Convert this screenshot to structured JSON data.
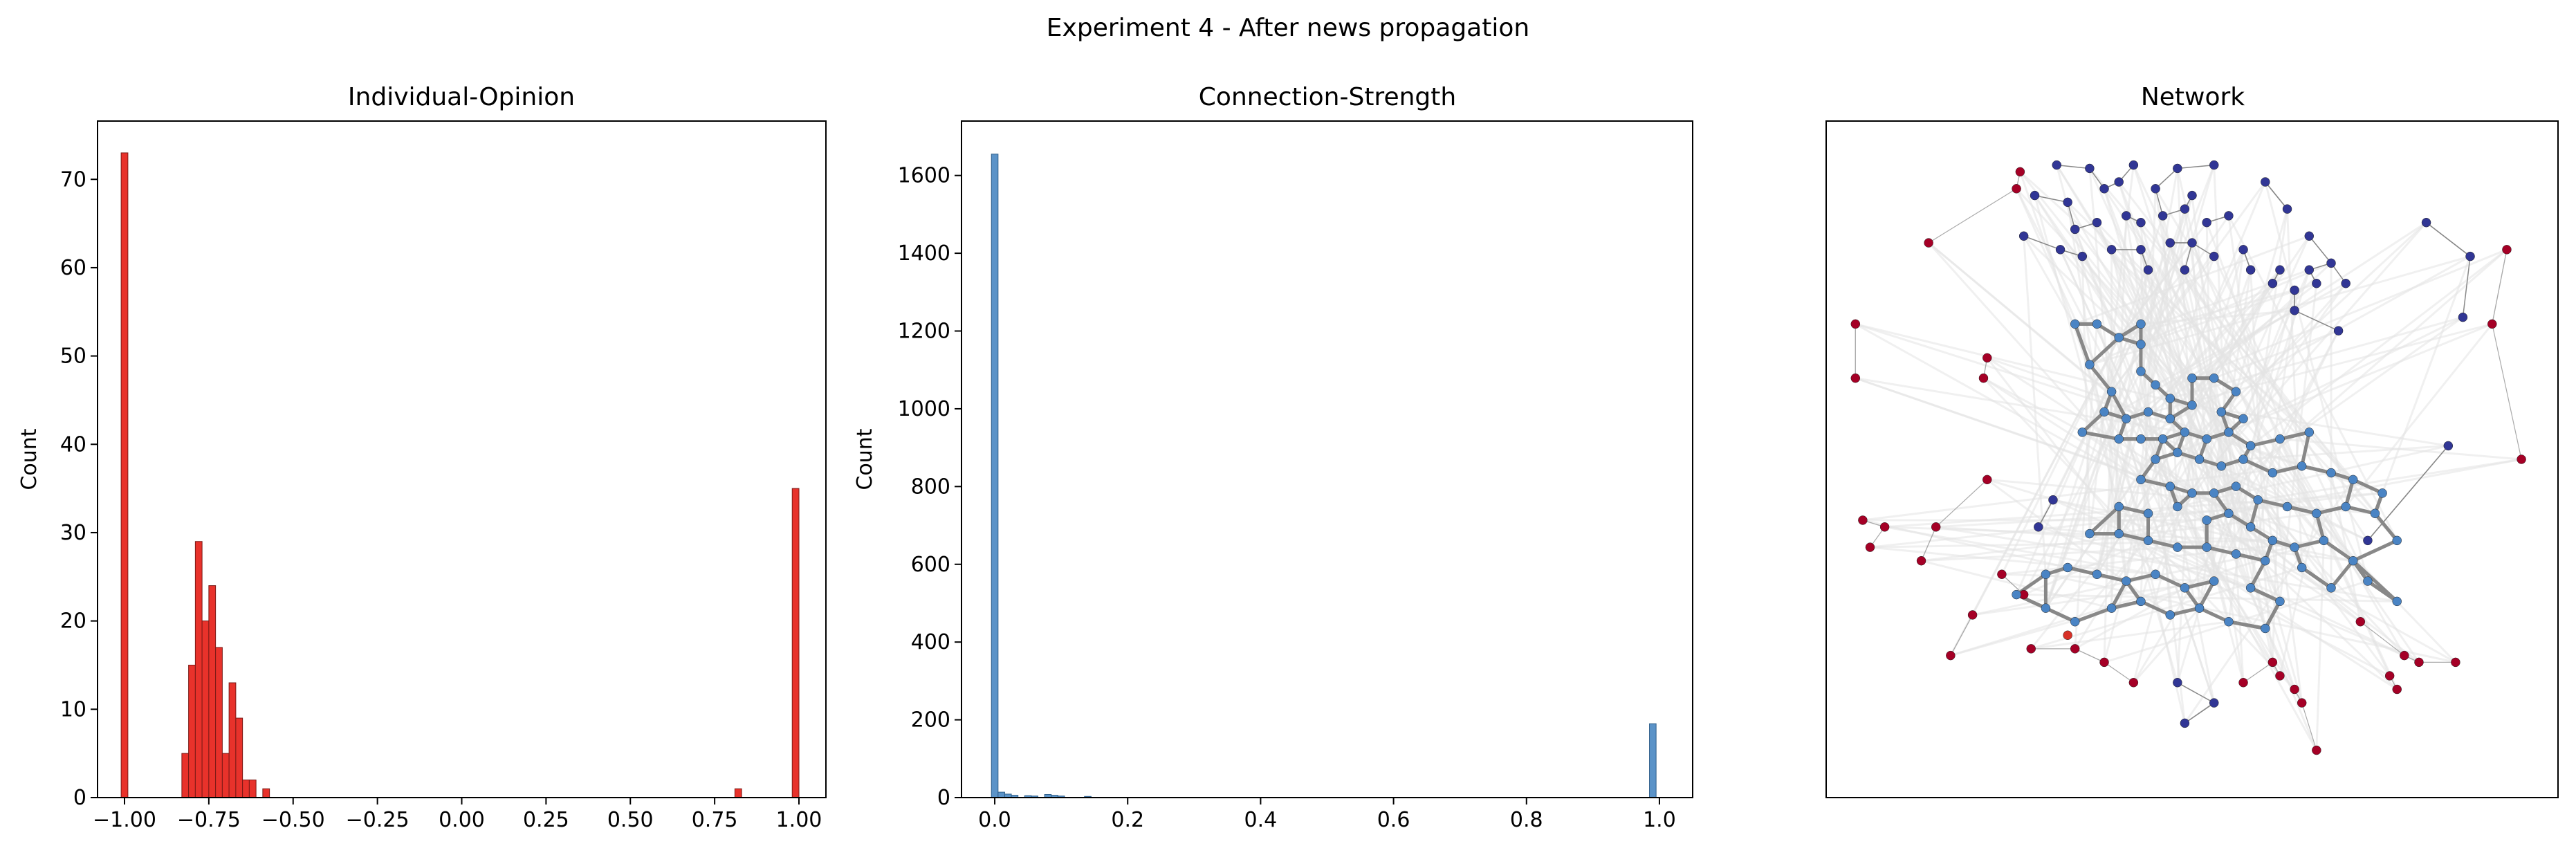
{
  "figure": {
    "suptitle": "Experiment 4 - After news propagation"
  },
  "chart_data": [
    {
      "type": "bar",
      "kind": "histogram",
      "title": "Individual-Opinion",
      "xlabel": "",
      "ylabel": "Count",
      "xlim": [
        -1.08,
        1.08
      ],
      "ylim": [
        0,
        76.6
      ],
      "xticks": [
        -1.0,
        -0.75,
        -0.5,
        -0.25,
        0.0,
        0.25,
        0.5,
        0.75,
        1.0
      ],
      "xtick_labels": [
        "−1.00",
        "−0.75",
        "−0.50",
        "−0.25",
        "0.00",
        "0.25",
        "0.50",
        "0.75",
        "1.00"
      ],
      "yticks": [
        0,
        10,
        20,
        30,
        40,
        50,
        60,
        70
      ],
      "yticks_labels": [
        "0",
        "10",
        "20",
        "30",
        "40",
        "50",
        "60",
        "70"
      ],
      "color": "#e8322b",
      "edge_color": "#7a1a16",
      "bin_width": 0.02,
      "bins": [
        {
          "x": -1.0,
          "count": 73
        },
        {
          "x": -0.82,
          "count": 5
        },
        {
          "x": -0.8,
          "count": 15
        },
        {
          "x": -0.78,
          "count": 29
        },
        {
          "x": -0.76,
          "count": 20
        },
        {
          "x": -0.74,
          "count": 24
        },
        {
          "x": -0.72,
          "count": 17
        },
        {
          "x": -0.7,
          "count": 5
        },
        {
          "x": -0.68,
          "count": 13
        },
        {
          "x": -0.66,
          "count": 9
        },
        {
          "x": -0.64,
          "count": 2
        },
        {
          "x": -0.62,
          "count": 2
        },
        {
          "x": -0.58,
          "count": 1
        },
        {
          "x": 0.82,
          "count": 1
        },
        {
          "x": 0.99,
          "count": 35
        }
      ]
    },
    {
      "type": "bar",
      "kind": "histogram",
      "title": "Connection-Strength",
      "xlabel": "",
      "ylabel": "Count",
      "xlim": [
        -0.05,
        1.05
      ],
      "ylim": [
        0,
        1740
      ],
      "xticks": [
        0.0,
        0.2,
        0.4,
        0.6,
        0.8,
        1.0
      ],
      "xtick_labels": [
        "0.0",
        "0.2",
        "0.4",
        "0.6",
        "0.8",
        "1.0"
      ],
      "yticks": [
        0,
        200,
        400,
        600,
        800,
        1000,
        1200,
        1400,
        1600
      ],
      "yticks_labels": [
        "0",
        "200",
        "400",
        "600",
        "800",
        "1000",
        "1200",
        "1400",
        "1600"
      ],
      "color": "#5b93c8",
      "edge_color": "#2f5f8a",
      "bin_width": 0.01,
      "bins": [
        {
          "x": 0.0,
          "count": 1655
        },
        {
          "x": 0.01,
          "count": 14
        },
        {
          "x": 0.02,
          "count": 9
        },
        {
          "x": 0.03,
          "count": 6
        },
        {
          "x": 0.05,
          "count": 5
        },
        {
          "x": 0.06,
          "count": 4
        },
        {
          "x": 0.08,
          "count": 8
        },
        {
          "x": 0.09,
          "count": 6
        },
        {
          "x": 0.1,
          "count": 4
        },
        {
          "x": 0.14,
          "count": 3
        },
        {
          "x": 0.99,
          "count": 190
        }
      ]
    },
    {
      "type": "scatter",
      "kind": "network",
      "title": "Network",
      "colors": {
        "red": "#a50026",
        "navy": "#313695",
        "blue": "#4a84c4",
        "orange": "#d73027",
        "edge": "#888888",
        "light_edge": "#e4e4e4"
      },
      "nodes": {
        "navy": [
          [
            0.315,
            0.065
          ],
          [
            0.36,
            0.07
          ],
          [
            0.42,
            0.065
          ],
          [
            0.48,
            0.07
          ],
          [
            0.53,
            0.065
          ],
          [
            0.285,
            0.11
          ],
          [
            0.33,
            0.12
          ],
          [
            0.38,
            0.1
          ],
          [
            0.4,
            0.09
          ],
          [
            0.45,
            0.1
          ],
          [
            0.5,
            0.11
          ],
          [
            0.6,
            0.09
          ],
          [
            0.34,
            0.16
          ],
          [
            0.37,
            0.15
          ],
          [
            0.41,
            0.14
          ],
          [
            0.43,
            0.15
          ],
          [
            0.46,
            0.14
          ],
          [
            0.49,
            0.13
          ],
          [
            0.52,
            0.15
          ],
          [
            0.55,
            0.14
          ],
          [
            0.63,
            0.13
          ],
          [
            0.27,
            0.17
          ],
          [
            0.32,
            0.19
          ],
          [
            0.35,
            0.2
          ],
          [
            0.39,
            0.19
          ],
          [
            0.43,
            0.19
          ],
          [
            0.47,
            0.18
          ],
          [
            0.5,
            0.18
          ],
          [
            0.53,
            0.2
          ],
          [
            0.57,
            0.19
          ],
          [
            0.66,
            0.17
          ],
          [
            0.44,
            0.22
          ],
          [
            0.49,
            0.22
          ],
          [
            0.58,
            0.22
          ],
          [
            0.62,
            0.22
          ],
          [
            0.66,
            0.22
          ],
          [
            0.69,
            0.21
          ],
          [
            0.82,
            0.15
          ],
          [
            0.88,
            0.2
          ],
          [
            0.61,
            0.24
          ],
          [
            0.64,
            0.25
          ],
          [
            0.67,
            0.24
          ],
          [
            0.71,
            0.24
          ],
          [
            0.64,
            0.28
          ],
          [
            0.7,
            0.31
          ],
          [
            0.87,
            0.29
          ],
          [
            0.31,
            0.56
          ],
          [
            0.29,
            0.6
          ],
          [
            0.85,
            0.48
          ],
          [
            0.74,
            0.62
          ],
          [
            0.48,
            0.83
          ],
          [
            0.53,
            0.86
          ],
          [
            0.49,
            0.89
          ]
        ],
        "red": [
          [
            0.265,
            0.075
          ],
          [
            0.26,
            0.1
          ],
          [
            0.14,
            0.18
          ],
          [
            0.04,
            0.3
          ],
          [
            0.22,
            0.35
          ],
          [
            0.215,
            0.38
          ],
          [
            0.04,
            0.38
          ],
          [
            0.22,
            0.53
          ],
          [
            0.93,
            0.19
          ],
          [
            0.91,
            0.3
          ],
          [
            0.95,
            0.5
          ],
          [
            0.05,
            0.59
          ],
          [
            0.08,
            0.6
          ],
          [
            0.06,
            0.63
          ],
          [
            0.13,
            0.65
          ],
          [
            0.15,
            0.6
          ],
          [
            0.24,
            0.67
          ],
          [
            0.27,
            0.7
          ],
          [
            0.2,
            0.73
          ],
          [
            0.17,
            0.79
          ],
          [
            0.28,
            0.78
          ],
          [
            0.34,
            0.78
          ],
          [
            0.38,
            0.8
          ],
          [
            0.42,
            0.83
          ],
          [
            0.61,
            0.8
          ],
          [
            0.62,
            0.82
          ],
          [
            0.64,
            0.84
          ],
          [
            0.65,
            0.86
          ],
          [
            0.57,
            0.83
          ],
          [
            0.73,
            0.74
          ],
          [
            0.79,
            0.79
          ],
          [
            0.77,
            0.82
          ],
          [
            0.81,
            0.8
          ],
          [
            0.86,
            0.8
          ],
          [
            0.78,
            0.84
          ],
          [
            0.67,
            0.93
          ]
        ],
        "orange": [
          [
            0.33,
            0.76
          ]
        ],
        "blue": [
          [
            0.34,
            0.3
          ],
          [
            0.37,
            0.3
          ],
          [
            0.4,
            0.32
          ],
          [
            0.43,
            0.3
          ],
          [
            0.43,
            0.33
          ],
          [
            0.36,
            0.36
          ],
          [
            0.39,
            0.4
          ],
          [
            0.43,
            0.37
          ],
          [
            0.45,
            0.39
          ],
          [
            0.47,
            0.41
          ],
          [
            0.5,
            0.38
          ],
          [
            0.53,
            0.38
          ],
          [
            0.56,
            0.4
          ],
          [
            0.38,
            0.43
          ],
          [
            0.41,
            0.44
          ],
          [
            0.44,
            0.43
          ],
          [
            0.47,
            0.44
          ],
          [
            0.5,
            0.42
          ],
          [
            0.54,
            0.43
          ],
          [
            0.57,
            0.44
          ],
          [
            0.35,
            0.46
          ],
          [
            0.4,
            0.47
          ],
          [
            0.43,
            0.47
          ],
          [
            0.46,
            0.47
          ],
          [
            0.49,
            0.46
          ],
          [
            0.52,
            0.47
          ],
          [
            0.55,
            0.46
          ],
          [
            0.58,
            0.48
          ],
          [
            0.62,
            0.47
          ],
          [
            0.66,
            0.46
          ],
          [
            0.45,
            0.5
          ],
          [
            0.48,
            0.49
          ],
          [
            0.51,
            0.5
          ],
          [
            0.54,
            0.51
          ],
          [
            0.57,
            0.5
          ],
          [
            0.61,
            0.52
          ],
          [
            0.65,
            0.51
          ],
          [
            0.69,
            0.52
          ],
          [
            0.72,
            0.53
          ],
          [
            0.76,
            0.55
          ],
          [
            0.43,
            0.53
          ],
          [
            0.47,
            0.54
          ],
          [
            0.5,
            0.55
          ],
          [
            0.53,
            0.55
          ],
          [
            0.56,
            0.54
          ],
          [
            0.59,
            0.56
          ],
          [
            0.63,
            0.57
          ],
          [
            0.67,
            0.58
          ],
          [
            0.71,
            0.57
          ],
          [
            0.75,
            0.58
          ],
          [
            0.4,
            0.57
          ],
          [
            0.44,
            0.58
          ],
          [
            0.48,
            0.57
          ],
          [
            0.52,
            0.59
          ],
          [
            0.55,
            0.58
          ],
          [
            0.58,
            0.6
          ],
          [
            0.61,
            0.62
          ],
          [
            0.64,
            0.63
          ],
          [
            0.68,
            0.62
          ],
          [
            0.72,
            0.65
          ],
          [
            0.78,
            0.62
          ],
          [
            0.36,
            0.61
          ],
          [
            0.4,
            0.61
          ],
          [
            0.44,
            0.62
          ],
          [
            0.48,
            0.63
          ],
          [
            0.52,
            0.63
          ],
          [
            0.56,
            0.64
          ],
          [
            0.6,
            0.65
          ],
          [
            0.65,
            0.66
          ],
          [
            0.3,
            0.67
          ],
          [
            0.33,
            0.66
          ],
          [
            0.37,
            0.67
          ],
          [
            0.41,
            0.68
          ],
          [
            0.45,
            0.67
          ],
          [
            0.49,
            0.69
          ],
          [
            0.53,
            0.68
          ],
          [
            0.58,
            0.69
          ],
          [
            0.62,
            0.71
          ],
          [
            0.69,
            0.69
          ],
          [
            0.74,
            0.68
          ],
          [
            0.78,
            0.71
          ],
          [
            0.39,
            0.72
          ],
          [
            0.43,
            0.71
          ],
          [
            0.47,
            0.73
          ],
          [
            0.51,
            0.72
          ],
          [
            0.55,
            0.74
          ],
          [
            0.6,
            0.75
          ],
          [
            0.34,
            0.74
          ],
          [
            0.3,
            0.72
          ],
          [
            0.26,
            0.7
          ]
        ]
      }
    }
  ]
}
